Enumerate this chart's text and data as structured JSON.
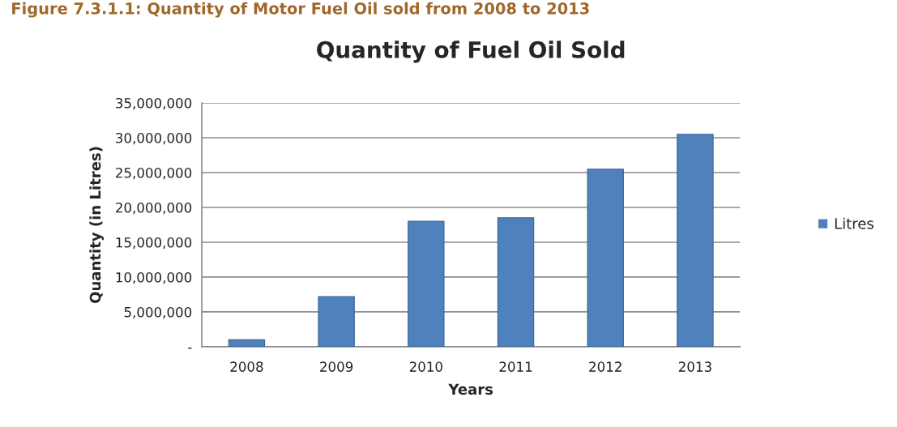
{
  "chart_data": {
    "type": "bar",
    "title": "Quantity of Fuel Oil Sold",
    "xlabel": "Years",
    "ylabel": "Quantity (in Litres)",
    "annotations": [
      "Figure 7.3.1.1: Quantity of Motor Fuel Oil sold from 2008 to 2013"
    ],
    "categories": [
      "2008",
      "2009",
      "2010",
      "2011",
      "2012",
      "2013"
    ],
    "series": [
      {
        "name": "Litres",
        "color": "#4f81bd",
        "values": [
          1000000,
          7200000,
          18000000,
          18500000,
          25500000,
          30500000
        ]
      }
    ],
    "ylim": [
      0,
      35000000
    ],
    "yticks": [
      {
        "value": 0,
        "label": "-"
      },
      {
        "value": 5000000,
        "label": "5,000,000"
      },
      {
        "value": 10000000,
        "label": "10,000,000"
      },
      {
        "value": 15000000,
        "label": "15,000,000"
      },
      {
        "value": 20000000,
        "label": "20,000,000"
      },
      {
        "value": 25000000,
        "label": "25,000,000"
      },
      {
        "value": 30000000,
        "label": "30,000,000"
      },
      {
        "value": 35000000,
        "label": "35,000,000"
      }
    ],
    "grid": "y",
    "legend": "right"
  }
}
